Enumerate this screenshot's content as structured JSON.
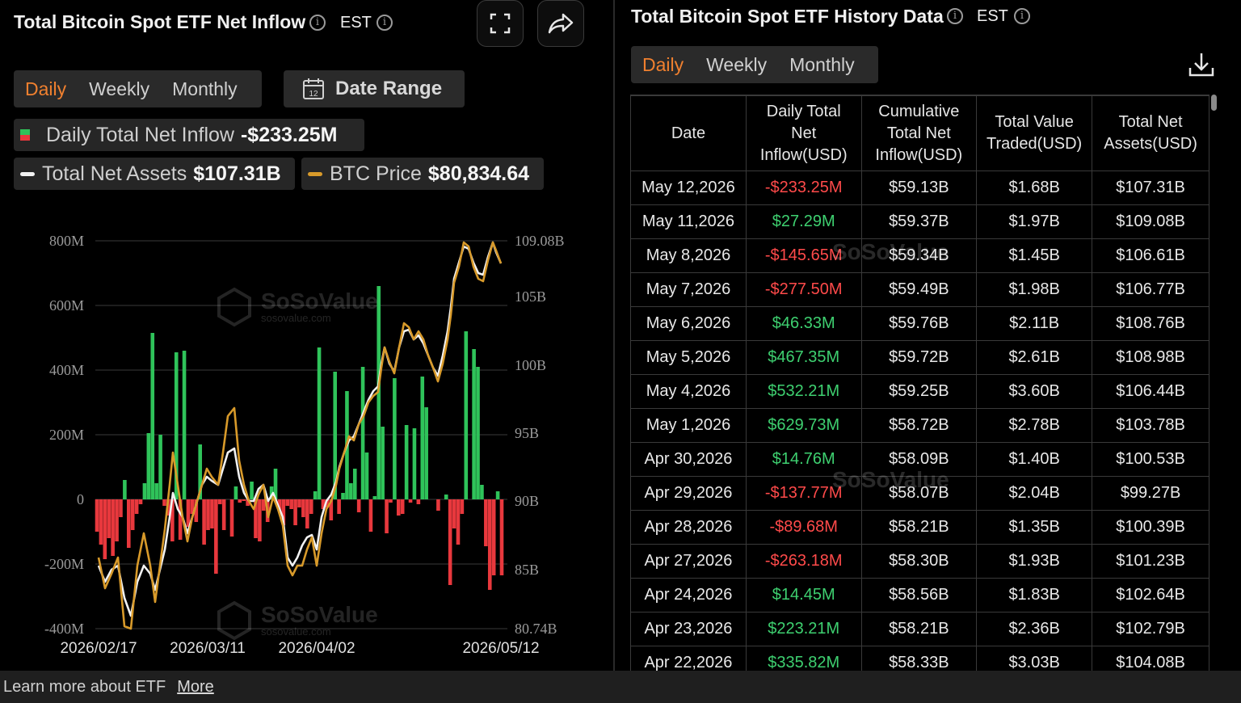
{
  "left": {
    "title": "Total Bitcoin Spot ETF Net Inflow",
    "timezone": "EST",
    "tabs": [
      "Daily",
      "Weekly",
      "Monthly"
    ],
    "active_tab": "Daily",
    "date_range_label": "Date Range",
    "date_range_icon_text": "12",
    "legend": {
      "inflow_label": "Daily Total Net Inflow",
      "inflow_value": "-$233.25M",
      "assets_label": "Total Net Assets",
      "assets_value": "$107.31B",
      "btc_label": "BTC Price",
      "btc_value": "$80,834.64"
    },
    "watermark": {
      "brand": "SoSoValue",
      "site": "sosovalue.com"
    }
  },
  "chart_data": {
    "type": "bar",
    "title": "",
    "left_axis_ticks": [
      "800M",
      "600M",
      "400M",
      "200M",
      "0",
      "-200M",
      "-400M"
    ],
    "right_axis_ticks": [
      "109.08B",
      "105B",
      "100B",
      "95B",
      "90B",
      "85B",
      "80.74B"
    ],
    "x_tick_labels": [
      "2026/02/17",
      "2026/03/11",
      "2026/04/02",
      "2026/05/12"
    ],
    "ylim_left_millions": [
      -400,
      800
    ],
    "ylim_right_billions": [
      80.74,
      109.08
    ],
    "colors": {
      "positive": "#2fc35a",
      "negative": "#e8383d",
      "assets_line": "#f2f2f2",
      "btc_line": "#d89a2a"
    },
    "series": [
      {
        "name": "Daily Total Net Inflow",
        "unit": "M USD",
        "values": [
          -100,
          -140,
          -185,
          -120,
          -175,
          -130,
          -55,
          60,
          -150,
          -95,
          -45,
          -15,
          50,
          205,
          515,
          50,
          200,
          -20,
          -50,
          -130,
          455,
          -125,
          460,
          -85,
          -45,
          -70,
          170,
          -140,
          -95,
          -90,
          -230,
          -15,
          -95,
          0,
          -115,
          40,
          -10,
          -5,
          -20,
          55,
          -120,
          -130,
          -35,
          -70,
          40,
          95,
          -35,
          -80,
          -20,
          -30,
          -80,
          -25,
          -55,
          -90,
          -45,
          25,
          470,
          -30,
          -25,
          -65,
          395,
          -45,
          20,
          335,
          50,
          95,
          -40,
          410,
          145,
          -100,
          10,
          660,
          225,
          -105,
          -10,
          375,
          -50,
          -45,
          230,
          -10,
          220,
          -15,
          380,
          285,
          0,
          0,
          -35,
          0,
          15,
          -265,
          -90,
          -140,
          -45,
          520,
          0,
          465,
          410,
          45,
          -145,
          -280,
          -235,
          25,
          -235
        ],
        "bar_count": 103
      },
      {
        "name": "Total Net Assets",
        "unit": "B USD",
        "start_value": 86.3,
        "end_value": 107.31
      },
      {
        "name": "BTC Price",
        "unit": "USD",
        "start_value": 66000,
        "end_value": 80834.64
      }
    ]
  },
  "right": {
    "title": "Total Bitcoin Spot ETF History Data",
    "timezone": "EST",
    "tabs": [
      "Daily",
      "Weekly",
      "Monthly"
    ],
    "active_tab": "Daily",
    "columns": [
      "Date",
      "Daily Total Net Inflow(USD)",
      "Cumulative Total Net Inflow(USD)",
      "Total Value Traded(USD)",
      "Total Net Assets(USD)"
    ],
    "column_lines": [
      [
        "Date"
      ],
      [
        "Daily Total",
        "Net",
        "Inflow(USD)"
      ],
      [
        "Cumulative",
        "Total Net",
        "Inflow(USD)"
      ],
      [
        "Total Value",
        "Traded(USD)"
      ],
      [
        "Total Net",
        "Assets(USD)"
      ]
    ],
    "rows": [
      [
        "May 12,2026",
        "-$233.25M",
        "$59.13B",
        "$1.68B",
        "$107.31B"
      ],
      [
        "May 11,2026",
        "$27.29M",
        "$59.37B",
        "$1.97B",
        "$109.08B"
      ],
      [
        "May 8,2026",
        "-$145.65M",
        "$59.34B",
        "$1.45B",
        "$106.61B"
      ],
      [
        "May 7,2026",
        "-$277.50M",
        "$59.49B",
        "$1.98B",
        "$106.77B"
      ],
      [
        "May 6,2026",
        "$46.33M",
        "$59.76B",
        "$2.11B",
        "$108.76B"
      ],
      [
        "May 5,2026",
        "$467.35M",
        "$59.72B",
        "$2.61B",
        "$108.98B"
      ],
      [
        "May 4,2026",
        "$532.21M",
        "$59.25B",
        "$3.60B",
        "$106.44B"
      ],
      [
        "May 1,2026",
        "$629.73M",
        "$58.72B",
        "$2.78B",
        "$103.78B"
      ],
      [
        "Apr 30,2026",
        "$14.76M",
        "$58.09B",
        "$1.40B",
        "$100.53B"
      ],
      [
        "Apr 29,2026",
        "-$137.77M",
        "$58.07B",
        "$2.04B",
        "$99.27B"
      ],
      [
        "Apr 28,2026",
        "-$89.68M",
        "$58.21B",
        "$1.35B",
        "$100.39B"
      ],
      [
        "Apr 27,2026",
        "-$263.18M",
        "$58.30B",
        "$1.93B",
        "$101.23B"
      ],
      [
        "Apr 24,2026",
        "$14.45M",
        "$58.56B",
        "$1.83B",
        "$102.64B"
      ],
      [
        "Apr 23,2026",
        "$223.21M",
        "$58.21B",
        "$2.36B",
        "$102.79B"
      ],
      [
        "Apr 22,2026",
        "$335.82M",
        "$58.33B",
        "$3.03B",
        "$104.08B"
      ]
    ]
  },
  "footer": {
    "text": "Learn more about ETF",
    "link": "More"
  }
}
